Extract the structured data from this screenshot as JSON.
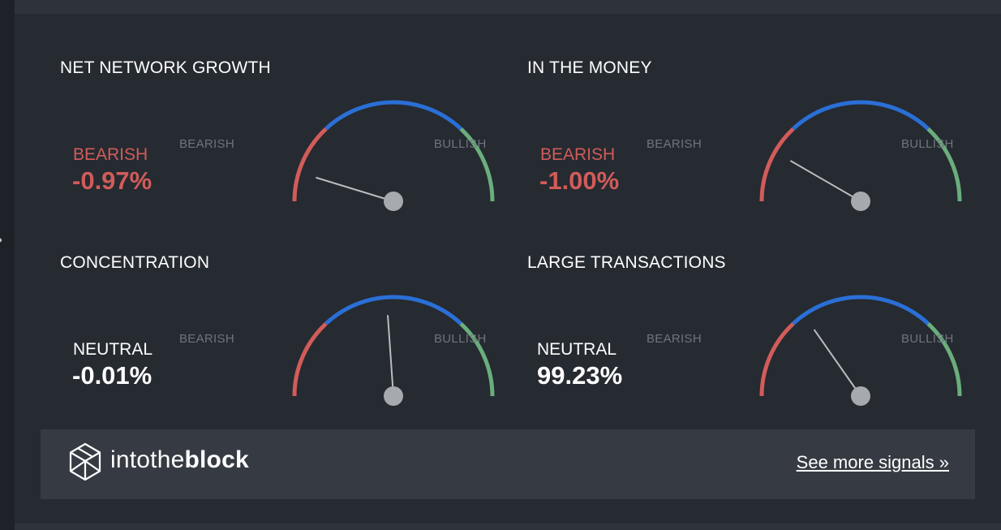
{
  "colors": {
    "bearish": "#d15c5a",
    "neutral_arc": "#2a6fd6",
    "bullish": "#6aae7c",
    "needle": "#b9bcc1",
    "hub": "#a6a9ad",
    "panel_bg": "#262a31",
    "footer_bg": "#363b43"
  },
  "nav": {
    "expand_icon": "chevron-right-icon"
  },
  "signals": [
    {
      "title": "NET NETWORK GROWTH",
      "status": "BEARISH",
      "value": "-0.97%",
      "left_label": "BEARISH",
      "right_label": "BULLISH",
      "needle_angle_deg": 163,
      "tone": "neg"
    },
    {
      "title": "IN THE MONEY",
      "status": "BEARISH",
      "value": "-1.00%",
      "left_label": "BEARISH",
      "right_label": "BULLISH",
      "needle_angle_deg": 150,
      "tone": "neg"
    },
    {
      "title": "CONCENTRATION",
      "status": "NEUTRAL",
      "value": "-0.01%",
      "left_label": "BEARISH",
      "right_label": "BULLISH",
      "needle_angle_deg": 94,
      "tone": "neu"
    },
    {
      "title": "LARGE TRANSACTIONS",
      "status": "NEUTRAL",
      "value": "99.23%",
      "left_label": "BEARISH",
      "right_label": "BULLISH",
      "needle_angle_deg": 125,
      "tone": "neu"
    }
  ],
  "footer": {
    "brand_prefix": "intothe",
    "brand_suffix": "block",
    "link_label": "See more signals »",
    "logo_icon": "cube-logo-icon"
  }
}
